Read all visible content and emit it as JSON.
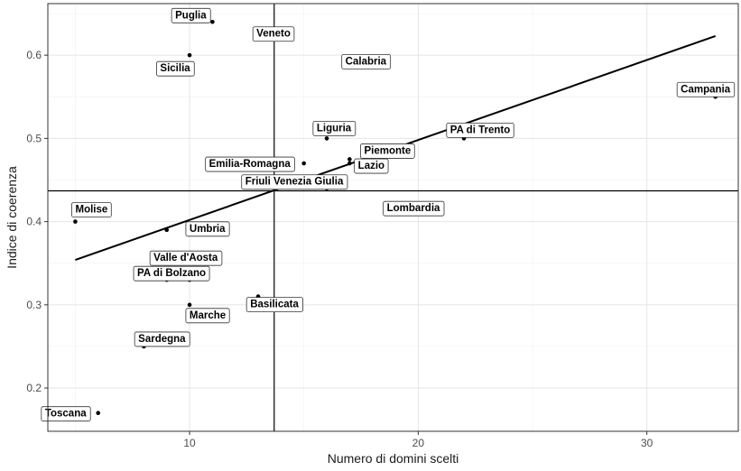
{
  "chart_data": {
    "type": "scatter",
    "title": "",
    "xlabel": "Numero di domini scelti",
    "ylabel": "Indice di coerenza",
    "xlim": [
      3.8,
      34.0
    ],
    "ylim": [
      0.148,
      0.662
    ],
    "x_ticks": [
      10,
      20,
      30
    ],
    "y_ticks": [
      0.2,
      0.3,
      0.4,
      0.5,
      0.6
    ],
    "y_tick_labels": [
      "0.2",
      "0.3",
      "0.4",
      "0.5",
      "0.6"
    ],
    "grid": true,
    "vline_x": 13.7,
    "hline_y": 0.437,
    "trend_line": {
      "x": [
        5.0,
        33.0
      ],
      "y": [
        0.354,
        0.623
      ]
    },
    "points": [
      {
        "label": "Puglia",
        "x": 11,
        "y": 0.64
      },
      {
        "label": "Veneto",
        "x": 13,
        "y": 0.62
      },
      {
        "label": "Sicilia",
        "x": 10,
        "y": 0.6
      },
      {
        "label": "Calabria",
        "x": 17,
        "y": 0.59
      },
      {
        "label": "Campania",
        "x": 33,
        "y": 0.55
      },
      {
        "label": "Liguria",
        "x": 16,
        "y": 0.5
      },
      {
        "label": "PA di Trento",
        "x": 22,
        "y": 0.5
      },
      {
        "label": "Emilia-Romagna",
        "x": 15,
        "y": 0.47
      },
      {
        "label": "Piemonte",
        "x": 17,
        "y": 0.475
      },
      {
        "label": "Lazio",
        "x": 17,
        "y": 0.47
      },
      {
        "label": "Friuli Venezia Giulia",
        "x": 16,
        "y": 0.44
      },
      {
        "label": "Lombardia",
        "x": 19,
        "y": 0.42
      },
      {
        "label": "Molise",
        "x": 5,
        "y": 0.4
      },
      {
        "label": "Umbria",
        "x": 9,
        "y": 0.39
      },
      {
        "label": "Valle d'Aosta",
        "x": 9,
        "y": 0.33
      },
      {
        "label": "PA di Bolzano",
        "x": 10,
        "y": 0.33
      },
      {
        "label": "Basilicata",
        "x": 13,
        "y": 0.31
      },
      {
        "label": "Marche",
        "x": 10,
        "y": 0.3
      },
      {
        "label": "Sardegna",
        "x": 8,
        "y": 0.25
      },
      {
        "label": "Toscana",
        "x": 6,
        "y": 0.17
      }
    ]
  }
}
